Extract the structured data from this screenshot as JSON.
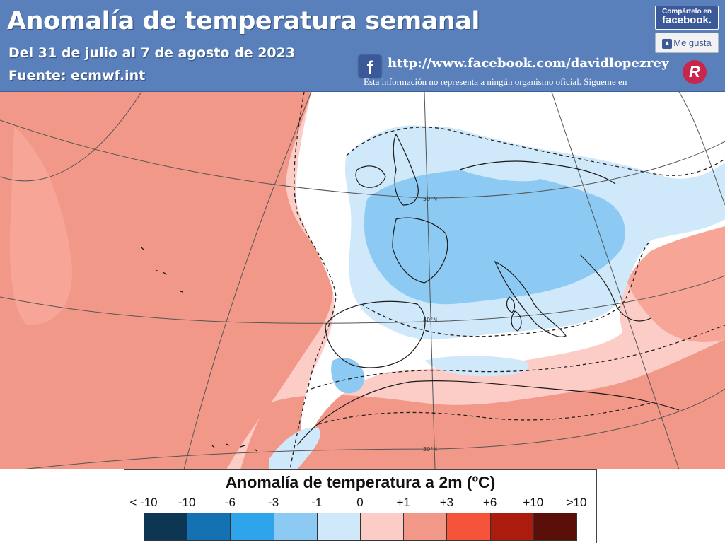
{
  "header": {
    "title": "Anomalía de temperatura semanal",
    "subtitle": "Del 31 de julio al 7 de agosto de 2023",
    "source": "Fuente: ecmwf.int",
    "facebook_url": "http://www.facebook.com/davidlopezrey",
    "disclaimer": "Esta información no representa a ningún organismo oficial. Sígueme en",
    "share_small": "Compártelo en",
    "share_big": "facebook.",
    "like_label": "Me gusta",
    "fb_icon": "f",
    "logo_letter": "R"
  },
  "map": {
    "latitude_labels": [
      "50°N",
      "40°N",
      "30°N"
    ]
  },
  "legend": {
    "title": "Anomalía de temperatura a 2m (ºC)",
    "ticks": [
      "< -10",
      "-10",
      "-6",
      "-3",
      "-1",
      "0",
      "+1",
      "+3",
      "+6",
      "+10",
      ">10"
    ],
    "colors": [
      "#0d3652",
      "#1472b3",
      "#2ea5ea",
      "#8ccaf3",
      "#cfe8fa",
      "#fccdc6",
      "#f29888",
      "#f5533a",
      "#ac1c0e",
      "#5a0f08"
    ]
  },
  "icons": {
    "facebook": "facebook-icon",
    "logo": "david-lopez-rey-logo",
    "like": "thumbs-up-icon"
  }
}
